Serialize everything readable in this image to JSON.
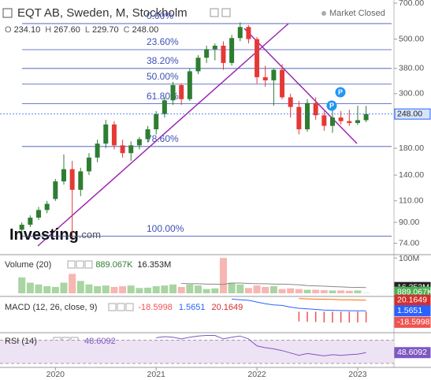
{
  "chart_data": [
    {
      "type": "candlestick",
      "title": "EQT AB, Sweden, M, Stockholm",
      "status": "Market Closed",
      "legend": [
        "O",
        "234.10",
        "H",
        "267.60",
        "L",
        "229.70",
        "C",
        "248.00"
      ],
      "x": [
        2019.6667,
        2019.75,
        2019.8333,
        2019.9167,
        2020,
        2020.0833,
        2020.1667,
        2020.25,
        2020.3333,
        2020.4167,
        2020.5,
        2020.5833,
        2020.6667,
        2020.75,
        2020.8333,
        2020.9167,
        2021,
        2021.0833,
        2021.1667,
        2021.25,
        2021.3333,
        2021.4167,
        2021.5,
        2021.5833,
        2021.6667,
        2021.75,
        2021.8333,
        2021.9167,
        2022,
        2022.0833,
        2022.1667,
        2022.25,
        2022.3333,
        2022.4167,
        2022.5,
        2022.5833,
        2022.6667,
        2022.75,
        2022.8333,
        2022.9167,
        2023,
        2023.0833
      ],
      "xlim": [
        2019.45,
        2023.36
      ],
      "xticks": [
        2020,
        2021,
        2022,
        2023
      ],
      "open": [
        84,
        88,
        94,
        101,
        112,
        132,
        148,
        122,
        145,
        165,
        188,
        225,
        185,
        172,
        185,
        196,
        215,
        248,
        282,
        325,
        285,
        370,
        420,
        455,
        470,
        400,
        505,
        560,
        500,
        350,
        340,
        375,
        290,
        265,
        215,
        275,
        245,
        222,
        240,
        232,
        228,
        234.1
      ],
      "high": [
        90,
        96,
        104,
        110,
        135,
        170,
        160,
        150,
        172,
        195,
        235,
        232,
        195,
        192,
        200,
        222,
        255,
        290,
        335,
        330,
        380,
        430,
        470,
        480,
        490,
        520,
        585,
        570,
        510,
        390,
        380,
        395,
        300,
        280,
        285,
        290,
        255,
        262,
        255,
        258,
        268,
        267.6
      ],
      "low": [
        82,
        86,
        92,
        98,
        110,
        128,
        78,
        115,
        140,
        158,
        180,
        178,
        165,
        160,
        178,
        190,
        205,
        240,
        270,
        270,
        280,
        360,
        400,
        410,
        375,
        390,
        490,
        480,
        330,
        320,
        268,
        285,
        240,
        205,
        210,
        235,
        212,
        208,
        225,
        222,
        224,
        229.7
      ],
      "close": [
        88,
        94,
        101,
        107,
        132,
        148,
        122,
        145,
        165,
        188,
        225,
        185,
        172,
        185,
        196,
        215,
        248,
        282,
        325,
        285,
        370,
        420,
        455,
        470,
        400,
        505,
        560,
        500,
        350,
        340,
        375,
        290,
        265,
        215,
        275,
        245,
        222,
        240,
        232,
        228,
        234.1,
        248.0
      ],
      "up_color": "#2e7d32",
      "down_color": "#e53935",
      "log_scale": true,
      "ylim": [
        67,
        721
      ],
      "yticks": [
        {
          "value": 700,
          "label": "700.00"
        },
        {
          "value": 500,
          "label": "500.00"
        },
        {
          "value": 380,
          "label": "380.00"
        },
        {
          "value": 300,
          "label": "300.00"
        },
        {
          "value": 180,
          "label": "180.00"
        },
        {
          "value": 140,
          "label": "140.00"
        },
        {
          "value": 110,
          "label": "110.00"
        },
        {
          "value": 90,
          "label": "90.00"
        },
        {
          "value": 74,
          "label": "74.00"
        }
      ],
      "last_price": {
        "value": 248,
        "label": "248.00"
      },
      "fib_levels": [
        {
          "value": 578,
          "label": "0.00%"
        },
        {
          "value": 453,
          "label": "23.60%"
        },
        {
          "value": 380,
          "label": "38.20%"
        },
        {
          "value": 328,
          "label": "50.00%"
        },
        {
          "value": 273,
          "label": "61.80%"
        },
        {
          "value": 183,
          "label": "78.60%"
        },
        {
          "value": 79,
          "label": "100.00%"
        }
      ],
      "fib_color": "#3f51b5",
      "markers": [
        "P",
        "P"
      ],
      "watermark": [
        "Investing",
        ".com"
      ]
    },
    {
      "type": "bar",
      "title": "Volume (20)",
      "legend": [
        "889.067K",
        "16.353M"
      ],
      "values": [
        45,
        30,
        25,
        20,
        18,
        30,
        55,
        35,
        25,
        20,
        22,
        18,
        20,
        22,
        15,
        16,
        20,
        22,
        25,
        18,
        25,
        22,
        12,
        14,
        100,
        30,
        25,
        15,
        22,
        18,
        20,
        12,
        14,
        12,
        10,
        10,
        9,
        8,
        8,
        7,
        8,
        0.889067
      ],
      "ma": [
        null,
        null,
        null,
        null,
        null,
        null,
        null,
        null,
        null,
        null,
        null,
        null,
        null,
        null,
        null,
        null,
        null,
        null,
        null,
        28,
        27,
        27,
        26,
        26,
        25,
        29,
        29,
        28,
        27,
        27,
        26,
        26,
        25,
        24,
        22,
        21,
        20,
        19,
        18,
        17,
        16.8,
        16.353
      ],
      "up_color": "#a8d5a2",
      "down_color": "#f7b6b2",
      "ma_color": "#888888",
      "ylim": [
        0,
        105
      ],
      "yticks": [
        {
          "value": 100,
          "label": "100M"
        }
      ]
    },
    {
      "type": "macd",
      "title": "MACD (12, 26, close, 9)",
      "legend": [
        "-18.5998",
        "1.5651",
        "20.1649"
      ],
      "histogram": [
        null,
        null,
        null,
        null,
        null,
        null,
        null,
        null,
        null,
        null,
        null,
        null,
        null,
        null,
        null,
        null,
        null,
        null,
        null,
        null,
        null,
        null,
        null,
        null,
        null,
        null,
        null,
        null,
        null,
        null,
        null,
        null,
        null,
        -17,
        -17.5,
        -18,
        -18.8,
        -19,
        -19,
        -19,
        -18.9,
        -18.5998
      ],
      "macd": [
        null,
        null,
        null,
        null,
        null,
        null,
        null,
        null,
        null,
        null,
        null,
        null,
        null,
        null,
        null,
        null,
        null,
        null,
        null,
        null,
        null,
        null,
        null,
        null,
        null,
        22,
        21,
        20,
        17,
        14,
        12,
        11,
        8,
        6,
        5,
        4,
        3,
        2.5,
        2,
        1.8,
        1.6,
        1.5651
      ],
      "signal": [
        null,
        null,
        null,
        null,
        null,
        null,
        null,
        null,
        null,
        null,
        null,
        null,
        null,
        null,
        null,
        null,
        null,
        null,
        null,
        null,
        null,
        null,
        null,
        null,
        null,
        null,
        null,
        null,
        null,
        null,
        null,
        null,
        null,
        23,
        22.5,
        22,
        21.8,
        21.5,
        21,
        20.8,
        20.5,
        20.1649
      ],
      "colors": {
        "histogram": "#ef5350",
        "macd": "#2962ff",
        "signal": "#ff6d00"
      },
      "ylim": [
        -34,
        24
      ]
    },
    {
      "type": "line",
      "title": "RSI (14)",
      "legend": [
        "48.6092"
      ],
      "values": [
        null,
        null,
        null,
        null,
        null,
        null,
        null,
        null,
        null,
        null,
        null,
        null,
        null,
        null,
        null,
        null,
        74,
        76,
        75,
        72,
        75,
        77,
        78,
        78,
        72,
        75,
        77,
        72,
        60,
        57,
        55,
        52,
        48,
        44,
        47,
        45,
        43,
        45,
        44,
        45,
        46,
        48.6092
      ],
      "color": "#7e57c2",
      "bands": [
        30,
        70
      ],
      "ylim": [
        26,
        80
      ]
    }
  ]
}
